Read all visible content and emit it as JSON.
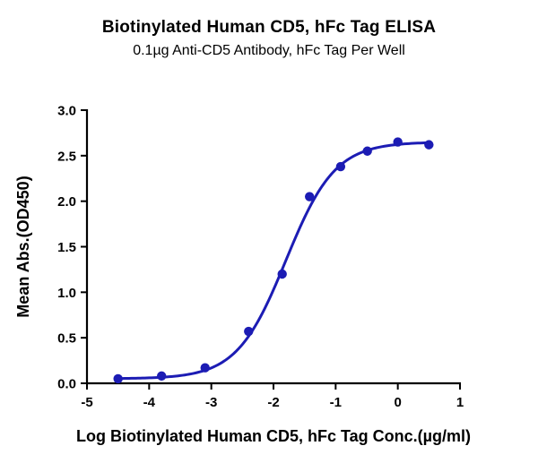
{
  "header": {
    "title": "Biotinylated Human CD5, hFc Tag ELISA",
    "subtitle": "0.1µg Anti-CD5 Antibody, hFc Tag Per Well"
  },
  "chart_data": {
    "type": "scatter",
    "title": "Biotinylated Human CD5, hFc Tag ELISA",
    "subtitle": "0.1µg Anti-CD5 Antibody, hFc Tag Per Well",
    "xlabel": "Log Biotinylated Human CD5, hFc Tag Conc.(µg/ml)",
    "ylabel": "Mean Abs.(OD450)",
    "xlim": [
      -5,
      1
    ],
    "ylim": [
      0,
      3
    ],
    "xticks": [
      -5,
      -4,
      -3,
      -2,
      -1,
      0,
      1
    ],
    "xtick_labels": [
      "-5",
      "-4",
      "-3",
      "-2",
      "-1",
      "0",
      "1"
    ],
    "yticks": [
      0,
      0.5,
      1,
      1.5,
      2,
      2.5,
      3
    ],
    "ytick_labels": [
      "0.0",
      "0.5",
      "1.0",
      "1.5",
      "2.0",
      "2.5",
      "3.0"
    ],
    "grid": false,
    "legend_position": "none",
    "series": [
      {
        "name": "Biotinylated Human CD5, hFc Tag",
        "x": [
          -4.5,
          -3.8,
          -3.1,
          -2.4,
          -1.86,
          -1.42,
          -0.92,
          -0.49,
          0.0,
          0.5
        ],
        "y": [
          0.05,
          0.08,
          0.17,
          0.57,
          1.2,
          2.05,
          2.38,
          2.55,
          2.65,
          2.62
        ]
      }
    ],
    "curve_fit": {
      "model": "4PL",
      "bottom": 0.05,
      "top": 2.65,
      "logEC50": -1.8,
      "hill": 1.1
    },
    "colors": {
      "line": "#1c1cb4",
      "marker": "#1c1cb4",
      "axis": "#000000",
      "text": "#000000"
    }
  }
}
